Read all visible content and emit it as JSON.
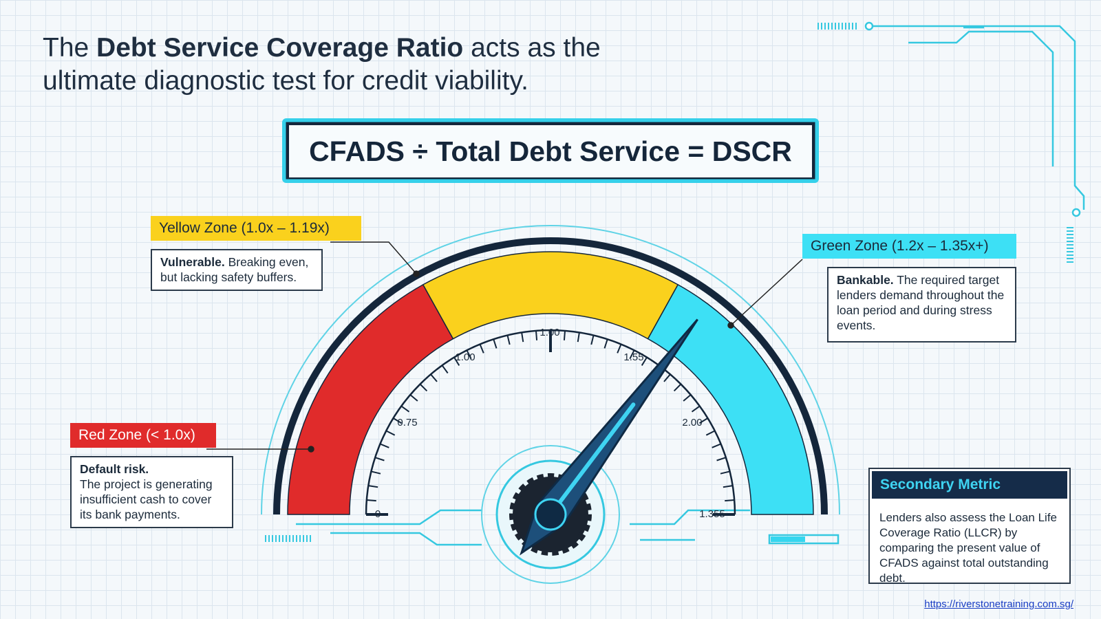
{
  "header": {
    "title": {
      "line1": [
        "The",
        "Debt Service Coverage Ratio",
        "acts as the"
      ],
      "line2": "ultimate diagnostic test for credit viability."
    }
  },
  "formula": "CFADS ÷ Total Debt Service = DSCR",
  "gauge": {
    "tick_labels": [
      "0",
      "0.75",
      "1.00",
      "1.00",
      "1.55",
      "2.00",
      "1.355"
    ]
  },
  "zones": [
    {
      "label": "Red Zone (< 1.0x)",
      "lead": "Default risk.",
      "text": "The project is generating insufficient cash to cover its bank payments."
    },
    {
      "label": "Yellow Zone (1.0x – 1.19x)",
      "lead": "Vulnerable.",
      "text": "Breaking even, but lacking safety buffers."
    },
    {
      "label": "Green Zone (1.2x – 1.35x+)",
      "lead": "Bankable.",
      "text": "The required target lenders demand throughout the loan period and during stress events."
    }
  ],
  "secondary": {
    "title": "Secondary Metric",
    "body": "Lenders also assess the Loan Life Coverage Ratio (LLCR) by comparing the present value of CFADS against total outstanding debt."
  },
  "footer": {
    "url": "https://riverstonetraining.com.sg/"
  }
}
